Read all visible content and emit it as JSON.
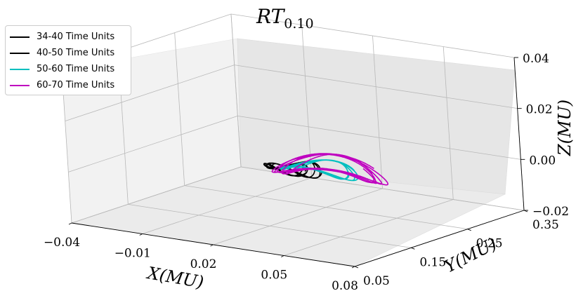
{
  "chart_data": {
    "type": "line3d",
    "title": "RT_{0.10}",
    "title_main": "RT",
    "title_sub": "0.10",
    "xlabel": "X(MU)",
    "ylabel": "Y(MU)",
    "zlabel": "Z(MU)",
    "xlim": [
      -0.04,
      0.08
    ],
    "ylim": [
      0.05,
      0.35
    ],
    "zlim": [
      -0.02,
      0.04
    ],
    "xticks": [
      "−0.04",
      "−0.01",
      "0.02",
      "0.05",
      "0.08"
    ],
    "yticks": [
      "0.05",
      "0.15",
      "0.25",
      "0.35"
    ],
    "zticks": [
      "−0.02",
      "0.00",
      "0.02",
      "0.04"
    ],
    "grid": true,
    "legend_position": "upper-left",
    "series": [
      {
        "name": "34-40 Time Units",
        "color": "#000000",
        "center": [
          0.02,
          0.185,
          0.0
        ],
        "radius": [
          0.008,
          0.012
        ],
        "z_amp": 0.0015,
        "turns": 3
      },
      {
        "name": "40-50 Time Units",
        "color": "#000000",
        "center": [
          0.022,
          0.19,
          0.0
        ],
        "radius": [
          0.01,
          0.014
        ],
        "z_amp": 0.002,
        "turns": 3
      },
      {
        "name": "50-60 Time Units",
        "color": "#00bfbf",
        "center": [
          0.03,
          0.2,
          0.0
        ],
        "radius": [
          0.014,
          0.02
        ],
        "z_amp": 0.002,
        "turns": 4
      },
      {
        "name": "60-70 Time Units",
        "color": "#bf00bf",
        "center": [
          0.034,
          0.205,
          0.0
        ],
        "radius": [
          0.02,
          0.03
        ],
        "z_amp": 0.003,
        "turns": 5
      }
    ]
  }
}
